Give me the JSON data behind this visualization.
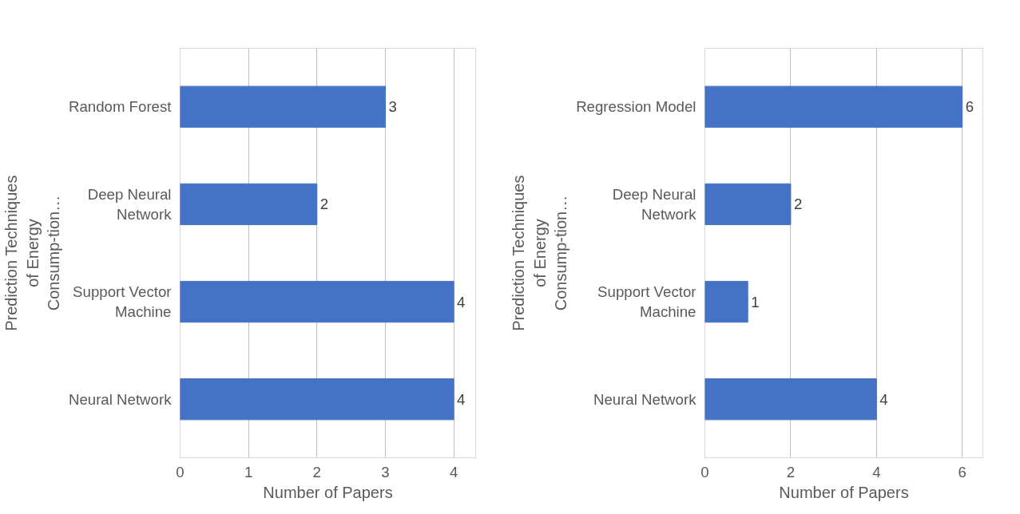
{
  "chart_data": [
    {
      "type": "bar",
      "orientation": "horizontal",
      "categories": [
        "Random Forest",
        "Deep Neural Network",
        "Support Vector Machine",
        "Neural Network"
      ],
      "values": [
        3,
        2,
        4,
        4
      ],
      "color": "#4472c4",
      "xlim": [
        0,
        4
      ],
      "xticks": [
        0,
        1,
        2,
        3,
        4
      ],
      "xlabel": "Number of Papers",
      "ylabel": "Prediction Techniques of Energy Consump-tion…",
      "data_labels": true,
      "grid": "x"
    },
    {
      "type": "bar",
      "orientation": "horizontal",
      "categories": [
        "Regression Model",
        "Deep Neural Network",
        "Support Vector Machine",
        "Neural Network"
      ],
      "values": [
        6,
        2,
        1,
        4
      ],
      "color": "#4472c4",
      "xlim": [
        0,
        6
      ],
      "xticks": [
        0,
        2,
        4,
        6
      ],
      "xlabel": "Number of Papers",
      "ylabel": "Prediction Techniques of Energy Consump-tion…",
      "data_labels": true,
      "grid": "x"
    }
  ]
}
